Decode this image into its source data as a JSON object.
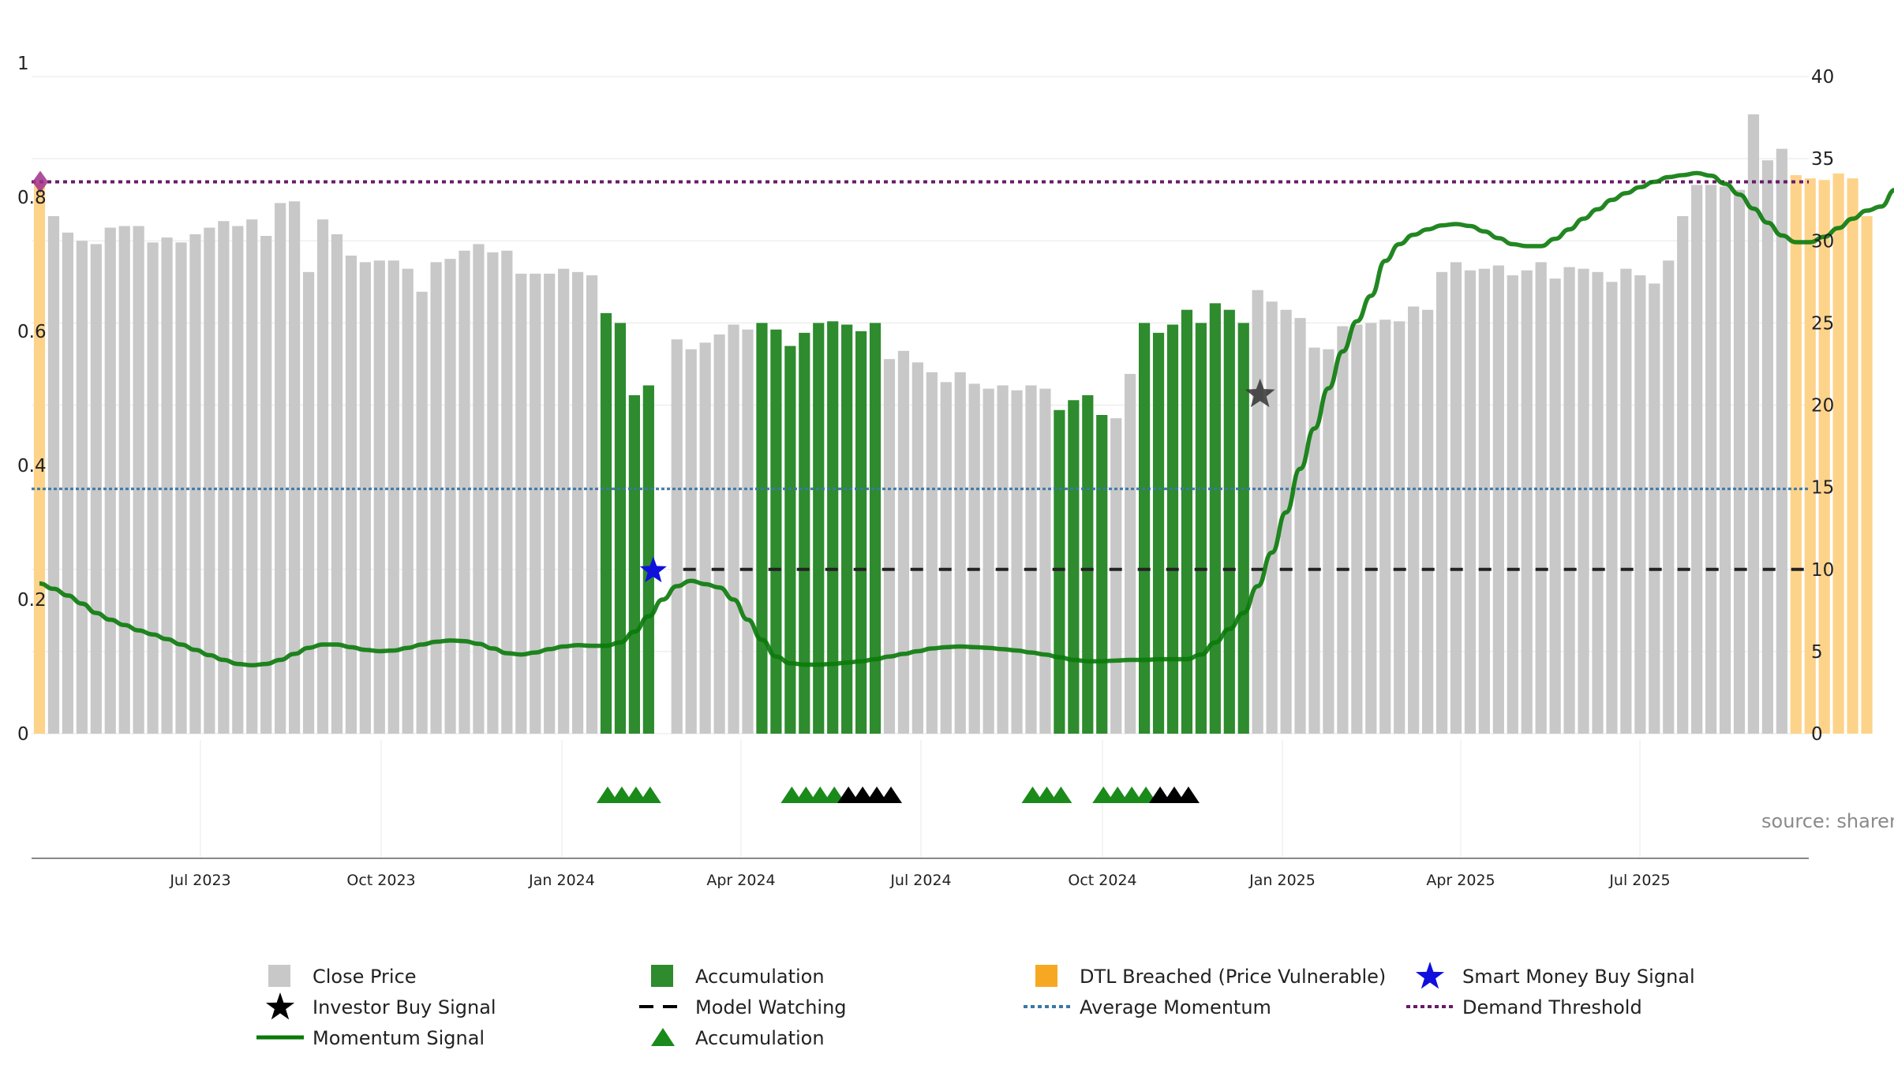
{
  "source_text": "source: sharemaestro.com",
  "colors": {
    "close": "#c8c8c8",
    "accum": "#2e8b2e",
    "dtl": "#fdd38a",
    "momentum": "#0a7a0a",
    "avg": "#3a78a8",
    "demand": "#6a1a6a",
    "watch": "#222222",
    "smart": "#1010dd",
    "investor": "#000000"
  },
  "chart_data": {
    "type": "bar",
    "x_ticks": [
      "Jul 2023",
      "Oct 2023",
      "Jan 2024",
      "Apr 2024",
      "Jul 2024",
      "Oct 2024",
      "Jan 2025",
      "Apr 2025",
      "Jul 2025"
    ],
    "left_axis": {
      "ticks": [
        "0",
        "0.2",
        "0.4",
        "0.6",
        "0.8",
        "1"
      ],
      "range": [
        0,
        1
      ]
    },
    "right_axis": {
      "ticks": [
        "0",
        "5",
        "10",
        "15",
        "20",
        "25",
        "30",
        "35",
        "40"
      ],
      "range": [
        0,
        40
      ]
    },
    "grid": true,
    "legend_placement": "bottom",
    "prices": [
      33.5,
      31.5,
      30.5,
      30,
      29.8,
      30.8,
      30.9,
      30.9,
      29.9,
      30.2,
      29.9,
      30.4,
      30.8,
      31.2,
      30.9,
      31.3,
      30.3,
      32.3,
      32.4,
      28.1,
      31.3,
      30.4,
      29.1,
      28.7,
      28.8,
      28.8,
      28.3,
      26.9,
      28.7,
      28.9,
      29.4,
      29.8,
      29.3,
      29.4,
      28,
      28,
      28,
      28.3,
      28.1,
      27.9,
      25.6,
      25,
      20.6,
      21.2,
      0,
      24,
      23.4,
      23.8,
      24.3,
      24.9,
      24.6,
      25,
      24.6,
      23.6,
      24.4,
      25,
      25.1,
      24.9,
      24.5,
      25,
      22.8,
      23.3,
      22.6,
      22,
      21.4,
      22,
      21.3,
      21,
      21.2,
      20.9,
      21.2,
      21,
      19.7,
      20.3,
      20.6,
      19.4,
      19.2,
      21.9,
      25,
      24.4,
      24.9,
      25.8,
      25,
      26.2,
      25.8,
      25,
      27,
      26.3,
      25.8,
      25.3,
      23.5,
      23.4,
      24.8,
      24.9,
      25,
      25.2,
      25.1,
      26,
      25.8,
      28.1,
      28.7,
      28.2,
      28.3,
      28.5,
      27.9,
      28.2,
      28.7,
      27.7,
      28.4,
      28.3,
      28.1,
      27.5,
      28.3,
      27.9,
      27.4,
      28.8,
      31.5,
      33.4,
      33.4,
      33.3,
      33.1,
      37.7,
      34.9,
      35.6,
      34,
      33.8,
      33.7,
      34.1,
      33.8,
      31.5
    ],
    "states": "DCCCCCCCCCCCCCCCCCCCCCCCCCCCCCCCCCCCCCCCAAAANCCCCCCAAAAAAAAACCCCCCCCCCCCAAAACCAAAAAAAACCCCCCCCCCCCCCCCCCCCCCCCCCCCCCCCCCCCCCDDDDDDDDDDDDC",
    "series": [
      {
        "name": "Momentum Signal",
        "values": [
          0.224,
          0.216,
          0.206,
          0.194,
          0.18,
          0.17,
          0.162,
          0.154,
          0.148,
          0.141,
          0.133,
          0.125,
          0.117,
          0.11,
          0.104,
          0.102,
          0.104,
          0.11,
          0.119,
          0.128,
          0.133,
          0.133,
          0.129,
          0.125,
          0.123,
          0.124,
          0.128,
          0.133,
          0.137,
          0.139,
          0.138,
          0.134,
          0.127,
          0.12,
          0.118,
          0.121,
          0.126,
          0.13,
          0.132,
          0.131,
          0.131,
          0.136,
          0.152,
          0.175,
          0.2,
          0.22,
          0.228,
          0.223,
          0.218,
          0.2,
          0.17,
          0.14,
          0.115,
          0.105,
          0.103,
          0.103,
          0.104,
          0.106,
          0.108,
          0.111,
          0.115,
          0.119,
          0.123,
          0.127,
          0.129,
          0.13,
          0.129,
          0.128,
          0.126,
          0.124,
          0.121,
          0.118,
          0.114,
          0.11,
          0.108,
          0.108,
          0.109,
          0.11,
          0.11,
          0.111,
          0.111,
          0.111,
          0.118,
          0.136,
          0.156,
          0.18,
          0.22,
          0.27,
          0.33,
          0.395,
          0.455,
          0.515,
          0.57,
          0.615,
          0.653,
          0.705,
          0.73,
          0.744,
          0.752,
          0.758,
          0.76,
          0.757,
          0.749,
          0.739,
          0.73,
          0.727,
          0.727,
          0.738,
          0.752,
          0.768,
          0.782,
          0.796,
          0.806,
          0.815,
          0.823,
          0.83,
          0.833,
          0.836,
          0.832,
          0.82,
          0.804,
          0.783,
          0.762,
          0.743,
          0.733,
          0.733,
          0.741,
          0.754,
          0.768,
          0.78,
          0.786,
          0.811,
          0.825,
          0.832,
          0.82,
          0.824,
          0.822,
          0.82
        ]
      },
      {
        "name": "Average Momentum",
        "values": [
          0.365
        ]
      },
      {
        "name": "Demand Threshold",
        "values": [
          0.823
        ]
      },
      {
        "name": "Model Watching",
        "values": [
          10
        ]
      }
    ],
    "signals": {
      "smart_money_buy": {
        "x": 44,
        "y": 0.25
      },
      "investor_buy": {
        "x": 86,
        "y": 0.506
      },
      "demand_marker": {
        "x": 0,
        "y": 0.823
      }
    },
    "markers": {
      "green": [
        40,
        41,
        42,
        43,
        53,
        54,
        55,
        56,
        70,
        71,
        72,
        75,
        76,
        77,
        78
      ],
      "black": [
        57,
        58,
        59,
        60,
        79,
        80,
        81
      ]
    }
  },
  "legend": [
    {
      "label": "Close Price",
      "icon": "gray-square"
    },
    {
      "label": "Accumulation",
      "icon": "green-square"
    },
    {
      "label": "DTL Breached (Price Vulnerable)",
      "icon": "orange-square"
    },
    {
      "label": "Smart Money Buy Signal",
      "icon": "blue-star"
    },
    {
      "label": "Investor Buy Signal",
      "icon": "black-star"
    },
    {
      "label": "Model Watching",
      "icon": "black-dash-line"
    },
    {
      "label": "Average Momentum",
      "icon": "blue-dotted-line"
    },
    {
      "label": "Demand Threshold",
      "icon": "purple-dotted-line"
    },
    {
      "label": "Momentum Signal",
      "icon": "green-line"
    },
    {
      "label": "Accumulation",
      "icon": "green-triangle"
    }
  ]
}
